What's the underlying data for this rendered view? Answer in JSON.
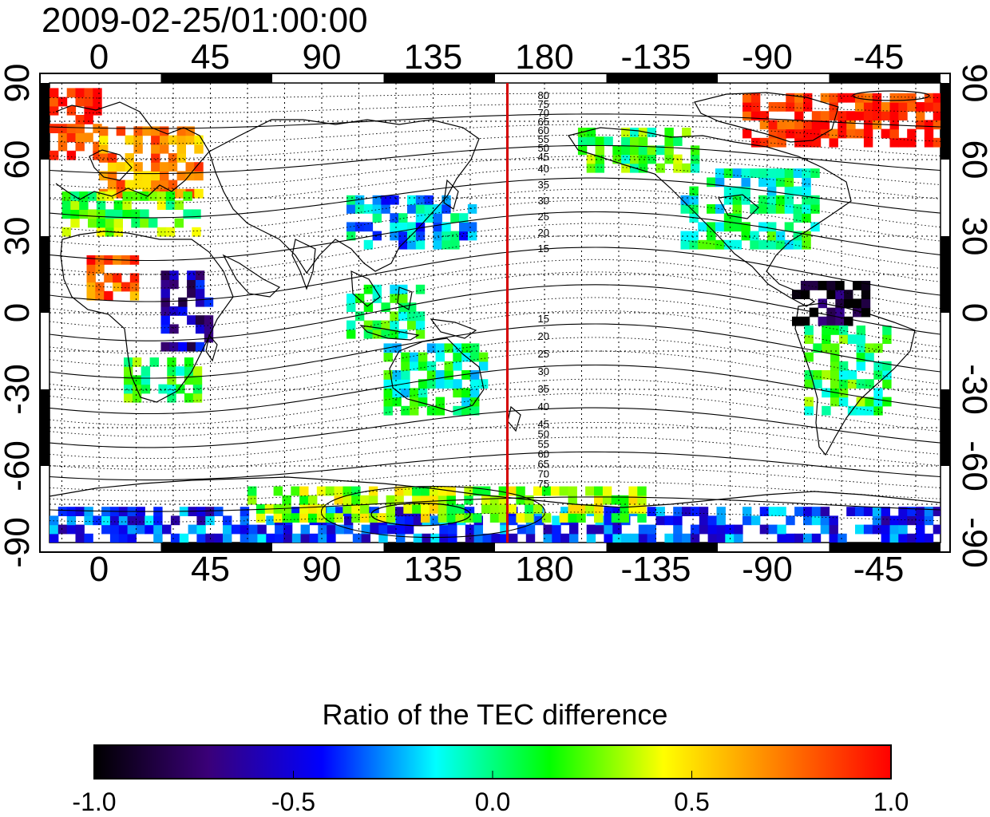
{
  "timestamp": "2009-02-25/01:00:00",
  "map": {
    "lon_ticks": [
      "0",
      "45",
      "90",
      "135",
      "180",
      "-135",
      "-90",
      "-45"
    ],
    "lat_ticks": [
      "90",
      "60",
      "30",
      "0",
      "-30",
      "-60",
      "-90"
    ],
    "contour_labels_north": [
      "80",
      "75",
      "70",
      "65",
      "60",
      "55",
      "50",
      "45",
      "40",
      "35",
      "30",
      "25",
      "20",
      "15"
    ],
    "contour_labels_south": [
      "15",
      "20",
      "25",
      "30",
      "35",
      "40",
      "45",
      "50",
      "55",
      "60",
      "65",
      "70",
      "75"
    ],
    "red_meridian_lon": 165,
    "grid": true
  },
  "colorbar": {
    "title": "Ratio of the TEC difference",
    "ticks": [
      "-1.0",
      "-0.5",
      "0.0",
      "0.5",
      "1.0"
    ],
    "colors": [
      "#000000",
      "#3a0078",
      "#0000ff",
      "#00ffff",
      "#00ff00",
      "#ffff00",
      "#ff8000",
      "#ff0000"
    ]
  },
  "chart_data": {
    "type": "heatmap",
    "title": "2009-02-25/01:00:00",
    "xlabel": "",
    "ylabel": "",
    "xlim": [
      -20,
      340
    ],
    "ylim": [
      -90,
      90
    ],
    "value_range": [
      -1.0,
      1.0
    ],
    "colorbar_label": "Ratio of the TEC difference",
    "regions": [
      {
        "lon": [
          -20,
          0
        ],
        "lat": [
          60,
          85
        ],
        "value": 0.9
      },
      {
        "lon": [
          0,
          40
        ],
        "lat": [
          45,
          70
        ],
        "value": 0.7
      },
      {
        "lon": [
          -15,
          40
        ],
        "lat": [
          30,
          45
        ],
        "value": 0.2
      },
      {
        "lon": [
          -5,
          15
        ],
        "lat": [
          5,
          20
        ],
        "value": 0.8
      },
      {
        "lon": [
          25,
          45
        ],
        "lat": [
          -15,
          15
        ],
        "value": -0.6
      },
      {
        "lon": [
          10,
          40
        ],
        "lat": [
          -35,
          -20
        ],
        "value": 0.1
      },
      {
        "lon": [
          100,
          150
        ],
        "lat": [
          25,
          45
        ],
        "value": -0.2
      },
      {
        "lon": [
          100,
          130
        ],
        "lat": [
          -10,
          10
        ],
        "value": 0.05
      },
      {
        "lon": [
          115,
          155
        ],
        "lat": [
          -40,
          -15
        ],
        "value": 0.0
      },
      {
        "lon": [
          190,
          240
        ],
        "lat": [
          55,
          70
        ],
        "value": 0.15
      },
      {
        "lon": [
          235,
          290
        ],
        "lat": [
          25,
          55
        ],
        "value": 0.0
      },
      {
        "lon": [
          260,
          340
        ],
        "lat": [
          65,
          85
        ],
        "value": 0.95
      },
      {
        "lon": [
          280,
          310
        ],
        "lat": [
          -5,
          10
        ],
        "value": -0.9
      },
      {
        "lon": [
          285,
          320
        ],
        "lat": [
          -40,
          -5
        ],
        "value": 0.1
      },
      {
        "lon": [
          -20,
          340
        ],
        "lat": [
          -90,
          -78
        ],
        "value": -0.4
      },
      {
        "lon": [
          60,
          220
        ],
        "lat": [
          -82,
          -70
        ],
        "value": 0.3
      }
    ]
  }
}
